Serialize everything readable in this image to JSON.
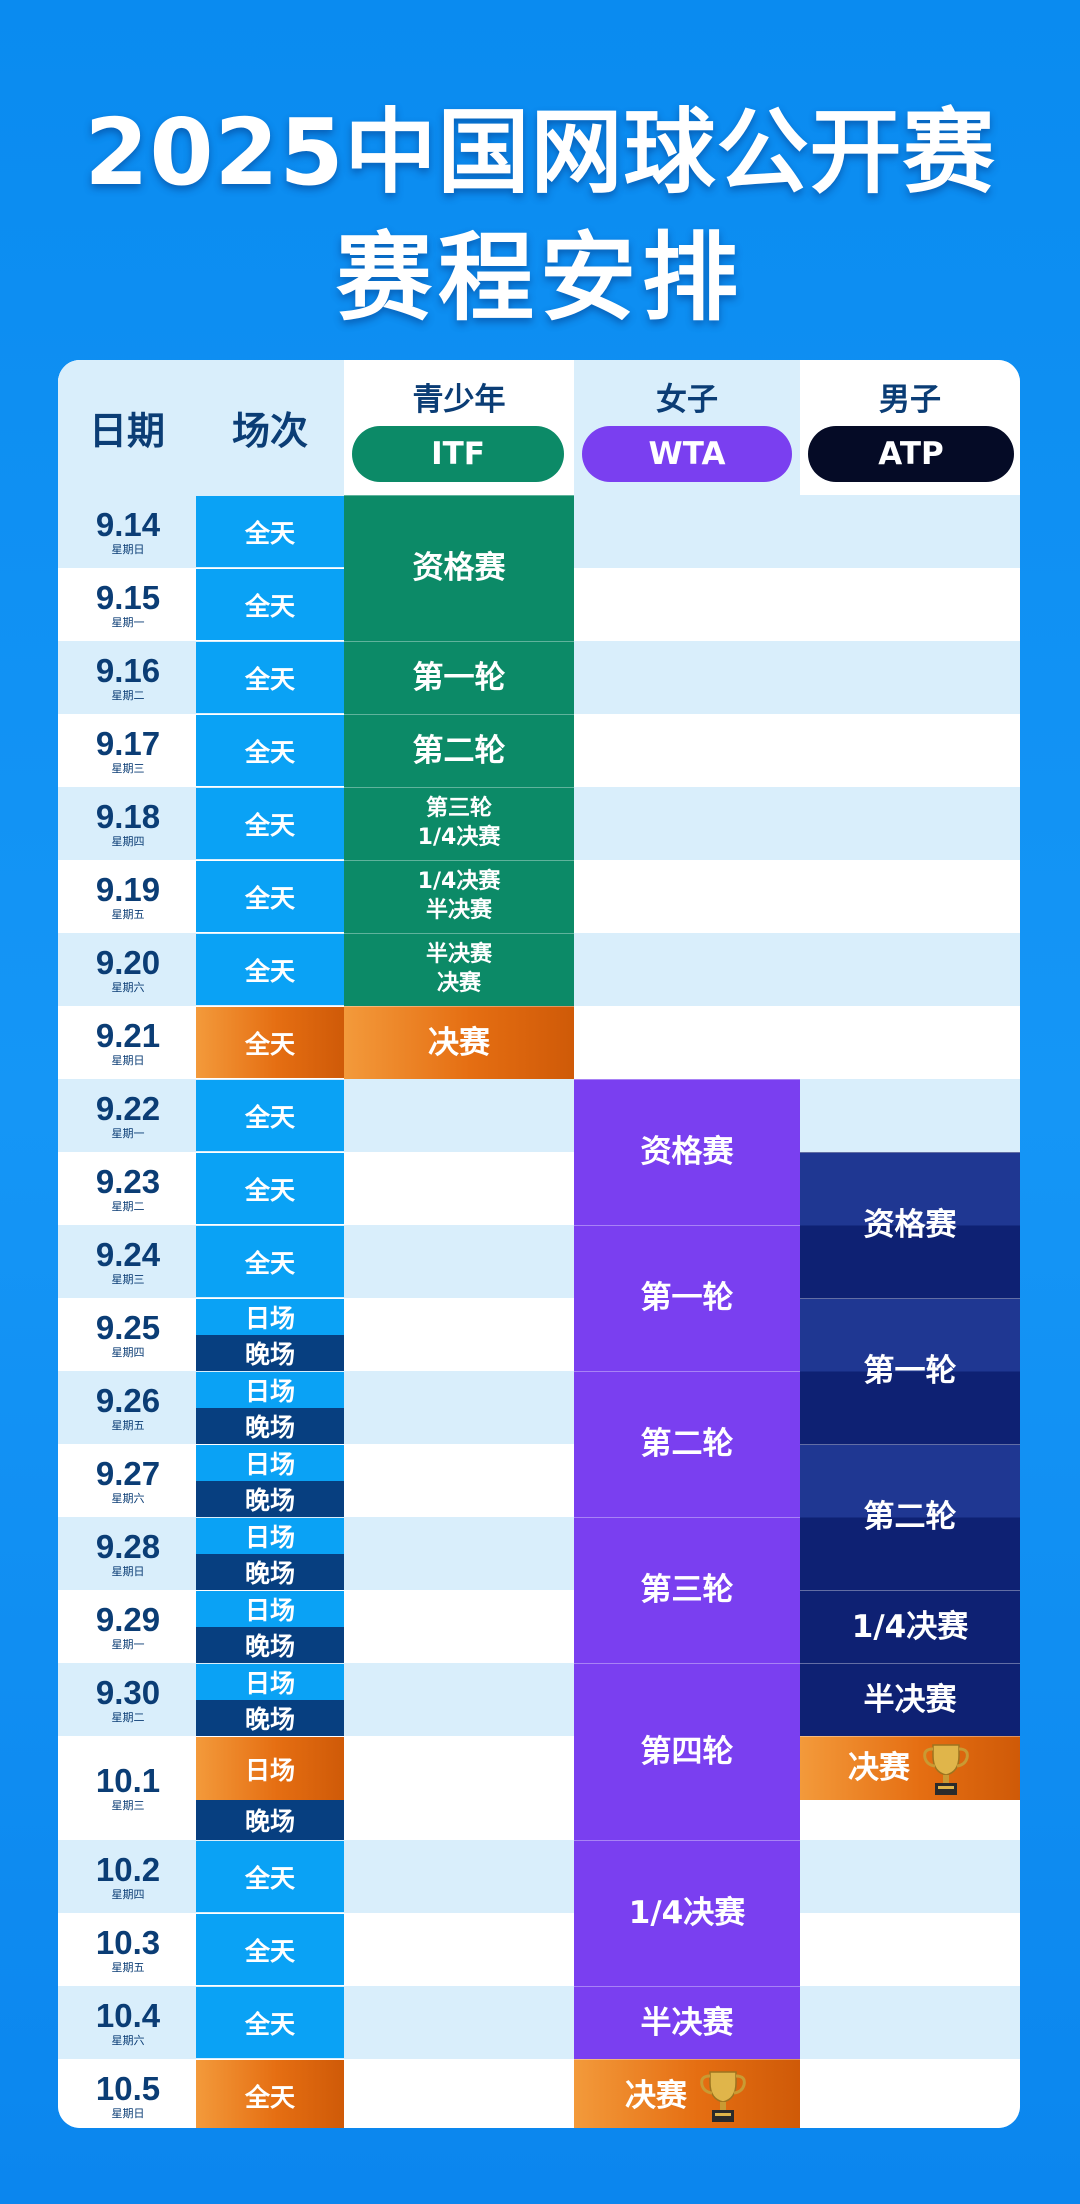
{
  "title": {
    "line1": "2025中国网球公开赛",
    "line2": "赛程安排"
  },
  "header": {
    "date": "日期",
    "session": "场次",
    "itf": {
      "group": "青少年",
      "badge": "ITF"
    },
    "wta": {
      "group": "女子",
      "badge": "WTA"
    },
    "atp": {
      "group": "男子",
      "badge": "ATP"
    }
  },
  "days": [
    {
      "date": "9.14",
      "weekday": "星期日",
      "sessions": [
        "全天"
      ]
    },
    {
      "date": "9.15",
      "weekday": "星期一",
      "sessions": [
        "全天"
      ]
    },
    {
      "date": "9.16",
      "weekday": "星期二",
      "sessions": [
        "全天"
      ]
    },
    {
      "date": "9.17",
      "weekday": "星期三",
      "sessions": [
        "全天"
      ]
    },
    {
      "date": "9.18",
      "weekday": "星期四",
      "sessions": [
        "全天"
      ]
    },
    {
      "date": "9.19",
      "weekday": "星期五",
      "sessions": [
        "全天"
      ]
    },
    {
      "date": "9.20",
      "weekday": "星期六",
      "sessions": [
        "全天"
      ]
    },
    {
      "date": "9.21",
      "weekday": "星期日",
      "sessions": [
        "全天"
      ]
    },
    {
      "date": "9.22",
      "weekday": "星期一",
      "sessions": [
        "全天"
      ]
    },
    {
      "date": "9.23",
      "weekday": "星期二",
      "sessions": [
        "全天"
      ]
    },
    {
      "date": "9.24",
      "weekday": "星期三",
      "sessions": [
        "全天"
      ]
    },
    {
      "date": "9.25",
      "weekday": "星期四",
      "sessions": [
        "日场",
        "晚场"
      ]
    },
    {
      "date": "9.26",
      "weekday": "星期五",
      "sessions": [
        "日场",
        "晚场"
      ]
    },
    {
      "date": "9.27",
      "weekday": "星期六",
      "sessions": [
        "日场",
        "晚场"
      ]
    },
    {
      "date": "9.28",
      "weekday": "星期日",
      "sessions": [
        "日场",
        "晚场"
      ]
    },
    {
      "date": "9.29",
      "weekday": "星期一",
      "sessions": [
        "日场",
        "晚场"
      ]
    },
    {
      "date": "9.30",
      "weekday": "星期二",
      "sessions": [
        "日场",
        "晚场"
      ]
    },
    {
      "date": "10.1",
      "weekday": "星期三",
      "sessions": [
        "日场",
        "晚场"
      ]
    },
    {
      "date": "10.2",
      "weekday": "星期四",
      "sessions": [
        "全天"
      ]
    },
    {
      "date": "10.3",
      "weekday": "星期五",
      "sessions": [
        "全天"
      ]
    },
    {
      "date": "10.4",
      "weekday": "星期六",
      "sessions": [
        "全天"
      ]
    },
    {
      "date": "10.5",
      "weekday": "星期日",
      "sessions": [
        "全天"
      ]
    }
  ],
  "itf_rounds": [
    {
      "label": "资格赛",
      "from": 0,
      "to": 1
    },
    {
      "label": "第一轮",
      "from": 2,
      "to": 2
    },
    {
      "label": "第二轮",
      "from": 3,
      "to": 3
    },
    {
      "label": "第三轮\n1/4决赛",
      "from": 4,
      "to": 4
    },
    {
      "label": "1/4决赛\n半决赛",
      "from": 5,
      "to": 5
    },
    {
      "label": "半决赛\n决赛",
      "from": 6,
      "to": 6
    },
    {
      "label": "决赛",
      "from": 7,
      "to": 7,
      "final": true
    }
  ],
  "wta_rounds": [
    {
      "label": "资格赛",
      "from": 8,
      "to": 9
    },
    {
      "label": "第一轮",
      "from": 10,
      "to": 11
    },
    {
      "label": "第二轮",
      "from": 12,
      "to": 13
    },
    {
      "label": "第三轮",
      "from": 14,
      "to": 15
    },
    {
      "label": "第四轮",
      "from": 16,
      "to": 17
    },
    {
      "label": "1/4决赛",
      "from": 18,
      "to": 19
    },
    {
      "label": "半决赛",
      "from": 20,
      "to": 20
    },
    {
      "label": "决赛",
      "from": 21,
      "to": 21,
      "final": true,
      "trophy": true
    }
  ],
  "atp_rounds": [
    {
      "label": "资格赛",
      "from": 9,
      "to": 10
    },
    {
      "label": "第一轮",
      "from": 11,
      "to": 12
    },
    {
      "label": "第二轮",
      "from": 13,
      "to": 14
    },
    {
      "label": "1/4决赛",
      "from": 15,
      "to": 15
    },
    {
      "label": "半决赛",
      "from": 16,
      "to": 16
    },
    {
      "label": "决赛",
      "from": 17,
      "to": 17,
      "final": true,
      "trophy": true,
      "partial": "day"
    }
  ],
  "orange_sessions": [
    "9.21",
    "10.1-日场",
    "10.5"
  ],
  "colors": {
    "itf": "#0c8a67",
    "wta": "#7a3ff0",
    "atp": "#0e2173",
    "session_full_day": "#0aa2f5",
    "session_day": "#0aa2f5",
    "session_night": "#073f80",
    "final_orange": "#e56e12",
    "row_light": "#d9eefb",
    "row_white": "#ffffff",
    "header_text": "#0b3d75",
    "background": "#0a8bf0"
  }
}
